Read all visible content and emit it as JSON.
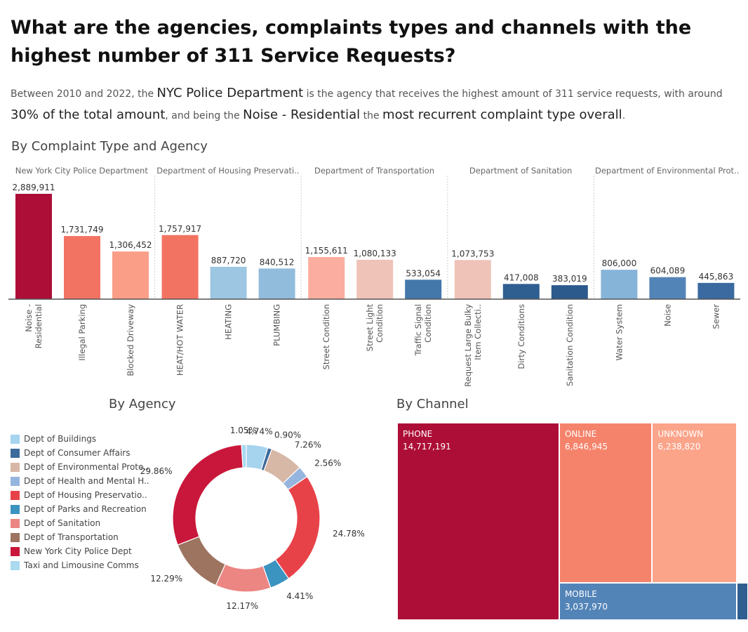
{
  "title": "What are the agencies, complaints types and channels with the highest number of 311 Service Requests?",
  "subtitle": {
    "p1": "Between 2010 and 2022, the ",
    "h1": "NYC Police Department",
    "p2": " is the agency that receives the highest amount of 311 service requests, with around ",
    "h2": "30% of the total amount",
    "p3": ", and being the ",
    "h3": "Noise - Residential",
    "p4": " the ",
    "h4": "most recurrent complaint type overall",
    "p5": "."
  },
  "sections": {
    "complaint": "By Complaint Type and Agency",
    "agency": "By Agency",
    "channel": "By Channel"
  },
  "chart_data": [
    {
      "type": "bar",
      "title": "By Complaint Type and Agency",
      "groups": [
        {
          "name": "New York City Police Department",
          "bars": [
            {
              "label": "Noise - Residential",
              "value": 2889911,
              "display": "2,889,911",
              "color": "#ad0e37"
            },
            {
              "label": "Illegal Parking",
              "value": 1731749,
              "display": "1,731,749",
              "color": "#f37362"
            },
            {
              "label": "Blocked Driveway",
              "value": 1306452,
              "display": "1,306,452",
              "color": "#fb9e87"
            }
          ]
        },
        {
          "name": "Department of Housing Preservati..",
          "bars": [
            {
              "label": "HEAT/HOT WATER",
              "value": 1757917,
              "display": "1,757,917",
              "color": "#f37362"
            },
            {
              "label": "HEATING",
              "value": 887720,
              "display": "887,720",
              "color": "#9dc6e2"
            },
            {
              "label": "PLUMBING",
              "value": 840512,
              "display": "840,512",
              "color": "#92bcdc"
            }
          ]
        },
        {
          "name": "Department of Transportation",
          "bars": [
            {
              "label": "Street Condition",
              "value": 1155611,
              "display": "1,155,611",
              "color": "#fbaea0"
            },
            {
              "label": "Street Light Condition",
              "value": 1080133,
              "display": "1,080,133",
              "color": "#efc3b8"
            },
            {
              "label": "Traffic Signal Condition",
              "value": 533054,
              "display": "533,054",
              "color": "#4477aa"
            }
          ]
        },
        {
          "name": "Department of Sanitation",
          "bars": [
            {
              "label": "Request Large Bulky Item Collecti..",
              "value": 1073753,
              "display": "1,073,753",
              "color": "#efc3b8"
            },
            {
              "label": "Dirty Conditions",
              "value": 417008,
              "display": "417,008",
              "color": "#2f5f91"
            },
            {
              "label": "Sanitation Condition",
              "value": 383019,
              "display": "383,019",
              "color": "#2c5a8c"
            }
          ]
        },
        {
          "name": "Department of Environmental Prot..",
          "bars": [
            {
              "label": "Water System",
              "value": 806000,
              "display": "806,000",
              "color": "#86b4d9"
            },
            {
              "label": "Noise",
              "value": 604089,
              "display": "604,089",
              "color": "#5384b8"
            },
            {
              "label": "Sewer",
              "value": 445863,
              "display": "445,863",
              "color": "#3a6aa0"
            }
          ]
        }
      ]
    },
    {
      "type": "pie",
      "title": "By Agency",
      "legend_position": "left",
      "slices": [
        {
          "label": "Dept of Buildings",
          "value": 4.74,
          "display": "4.74%",
          "color": "#a6d3ee"
        },
        {
          "label": "Dept of Consumer Affairs",
          "value": 0.9,
          "display": "0.90%",
          "color": "#3c6a9b"
        },
        {
          "label": "Dept of Environmental Prote..",
          "value": 7.26,
          "display": "7.26%",
          "color": "#d7b7a6"
        },
        {
          "label": "Dept of Health and Mental H..",
          "value": 2.56,
          "display": "2.56%",
          "color": "#96b5de"
        },
        {
          "label": "Dept of Housing Preservatio..",
          "value": 24.78,
          "display": "24.78%",
          "color": "#e84249"
        },
        {
          "label": "Dept of Parks and Recreation",
          "value": 4.41,
          "display": "4.41%",
          "color": "#3b93c0"
        },
        {
          "label": "Dept of Sanitation",
          "value": 12.17,
          "display": "12.17%",
          "color": "#ec8683"
        },
        {
          "label": "Dept of Transportation",
          "value": 12.29,
          "display": "12.29%",
          "color": "#9c7460"
        },
        {
          "label": "New York City Police Dept",
          "value": 29.86,
          "display": "29.86%",
          "color": "#c8173a"
        },
        {
          "label": "Taxi and Limousine Comms",
          "value": 1.05,
          "display": "1.05%",
          "color": "#a9daf0"
        }
      ]
    },
    {
      "type": "treemap",
      "title": "By Channel",
      "items": [
        {
          "label": "PHONE",
          "value": 14717191,
          "display": "14,717,191",
          "color": "#ad0e37"
        },
        {
          "label": "ONLINE",
          "value": 6846945,
          "display": "6,846,945",
          "color": "#f5836b"
        },
        {
          "label": "UNKNOWN",
          "value": 6238820,
          "display": "6,238,820",
          "color": "#fba48a"
        },
        {
          "label": "MOBILE",
          "value": 3037970,
          "display": "3,037,970",
          "color": "#5384b8"
        },
        {
          "label": "",
          "value": 0,
          "display": "",
          "color": "#2f5f91"
        }
      ]
    }
  ]
}
